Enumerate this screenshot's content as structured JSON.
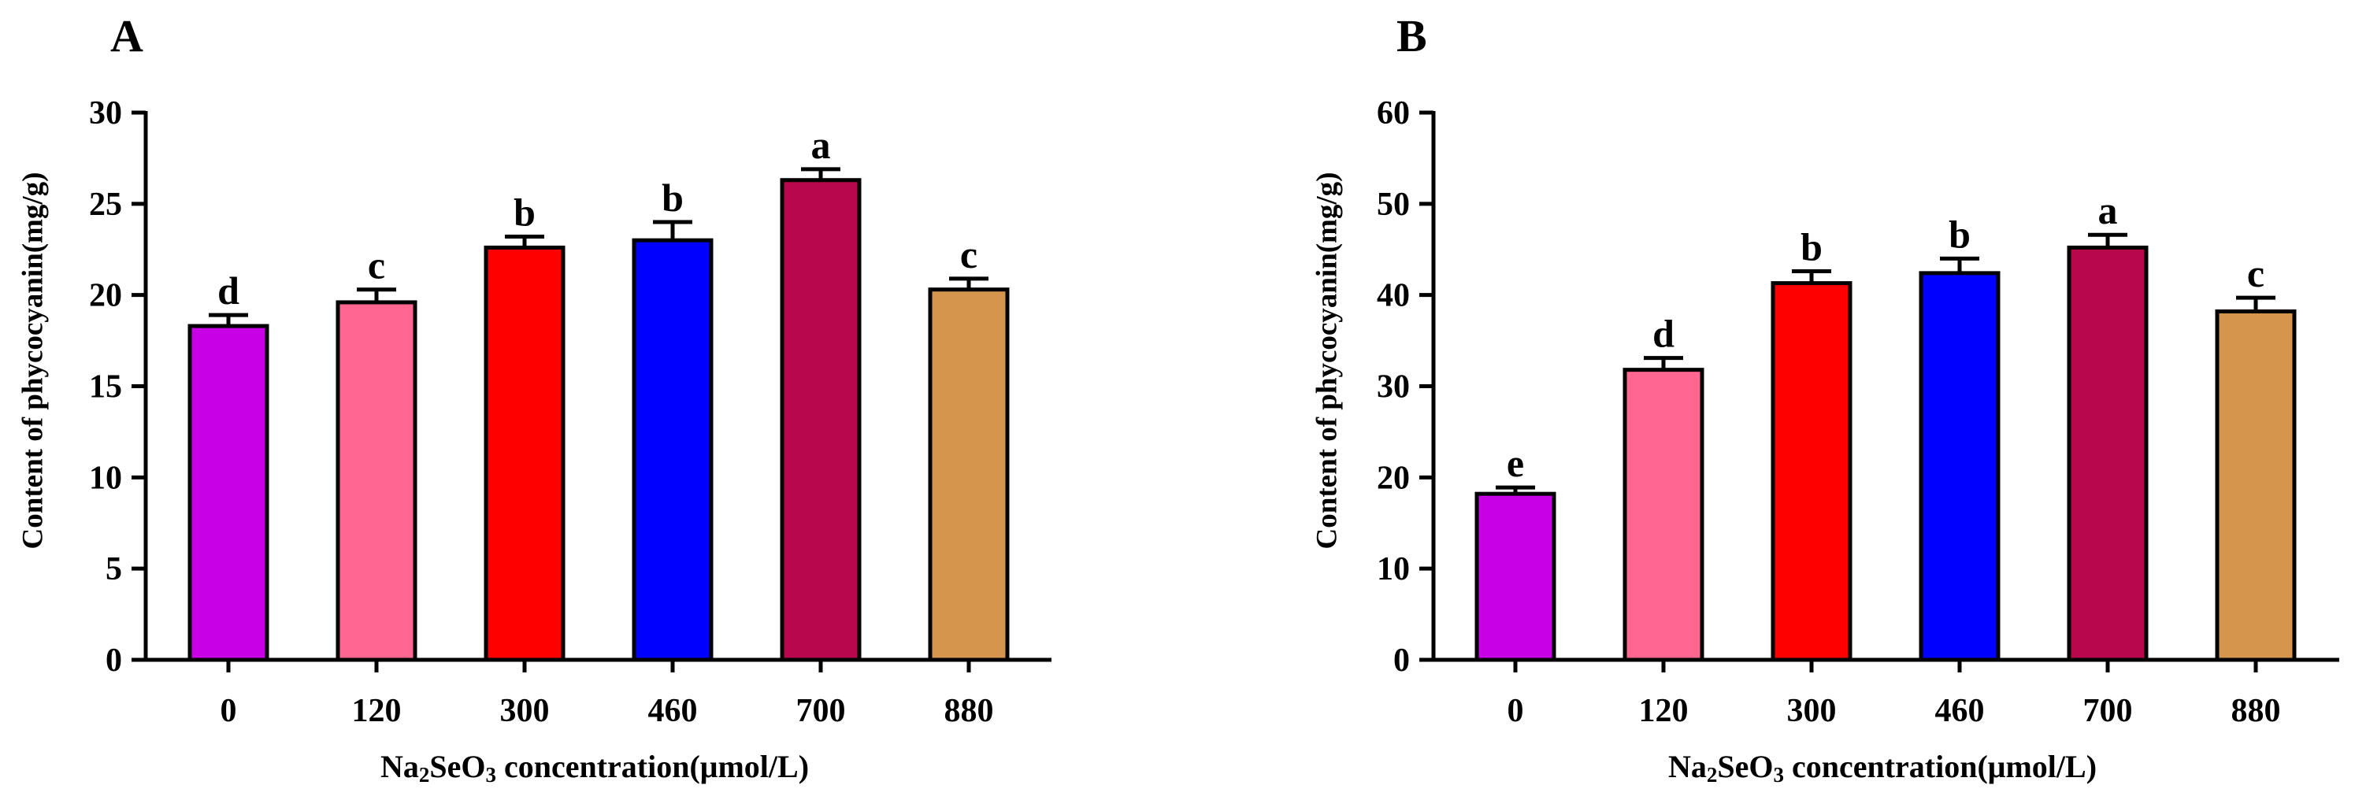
{
  "figure": {
    "xlabel": {
      "prefix": "Na",
      "sub1": "2",
      "mid": "SeO",
      "sub2": "3",
      "suffix": " concentration(μmol/L)"
    }
  },
  "chart_data": [
    {
      "type": "bar",
      "panel_label": "A",
      "categories": [
        "0",
        "120",
        "300",
        "460",
        "700",
        "880"
      ],
      "values": [
        18.3,
        19.6,
        22.6,
        23.0,
        26.3,
        20.3
      ],
      "errors": [
        0.6,
        0.7,
        0.6,
        1.0,
        0.6,
        0.6
      ],
      "significance": [
        "d",
        "c",
        "b",
        "b",
        "a",
        "c"
      ],
      "colors": [
        "#c800e6",
        "#ff6690",
        "#ff0000",
        "#0000ff",
        "#b8074a",
        "#d5954c"
      ],
      "ylabel": "Content of phycocyanin(mg/g)",
      "xlabel": "Na2SeO3 concentration(μmol/L)",
      "ylim": [
        0,
        30
      ],
      "yticks": [
        0,
        5,
        10,
        15,
        20,
        25,
        30
      ],
      "grid": false
    },
    {
      "type": "bar",
      "panel_label": "B",
      "categories": [
        "0",
        "120",
        "300",
        "460",
        "700",
        "880"
      ],
      "values": [
        18.2,
        31.8,
        41.3,
        42.4,
        45.2,
        38.2
      ],
      "errors": [
        0.7,
        1.3,
        1.3,
        1.6,
        1.4,
        1.5
      ],
      "significance": [
        "e",
        "d",
        "b",
        "b",
        "a",
        "c"
      ],
      "colors": [
        "#c800e6",
        "#ff6690",
        "#ff0000",
        "#0000ff",
        "#b8074a",
        "#d5954c"
      ],
      "ylabel": "Content of phycocyanin(mg/g)",
      "xlabel": "Na2SeO3 concentration(μmol/L)",
      "ylim": [
        0,
        60
      ],
      "yticks": [
        0,
        10,
        20,
        30,
        40,
        50,
        60
      ],
      "grid": false
    }
  ]
}
